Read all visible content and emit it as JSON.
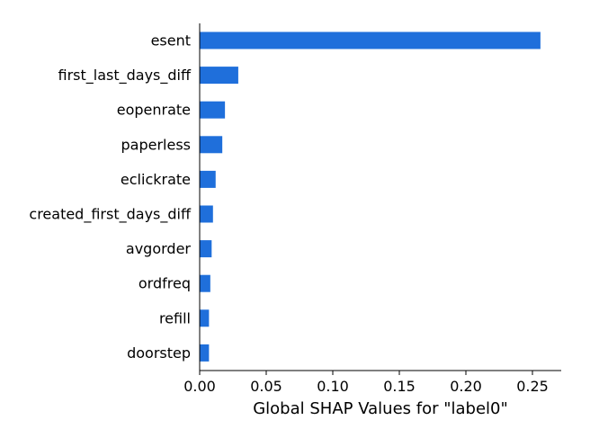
{
  "chart_data": {
    "type": "bar",
    "orientation": "horizontal",
    "categories": [
      "esent",
      "first_last_days_diff",
      "eopenrate",
      "paperless",
      "eclickrate",
      "created_first_days_diff",
      "avgorder",
      "ordfreq",
      "refill",
      "doorstep"
    ],
    "values": [
      0.256,
      0.029,
      0.019,
      0.017,
      0.012,
      0.01,
      0.009,
      0.008,
      0.007,
      0.007
    ],
    "title": "",
    "xlabel": "Global SHAP Values for \"label0\"",
    "ylabel": "",
    "xlim": [
      0,
      0.27
    ],
    "xticks": [
      0.0,
      0.05,
      0.1,
      0.15,
      0.2,
      0.25
    ],
    "xtick_labels": [
      "0.00",
      "0.05",
      "0.10",
      "0.15",
      "0.20",
      "0.25"
    ],
    "bar_color": "#1f6fdb",
    "grid": false,
    "legend": "none"
  }
}
